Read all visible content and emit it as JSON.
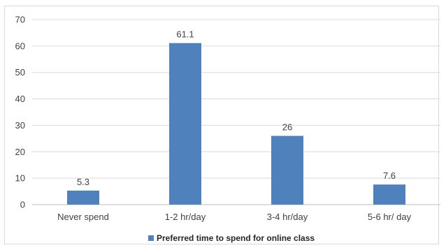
{
  "chart_data": {
    "type": "bar",
    "categories": [
      "Never spend",
      "1-2 hr/day",
      "3-4 hr/day",
      "5-6 hr/ day"
    ],
    "series": [
      {
        "name": "Preferred time to spend for online class",
        "values": [
          5.3,
          61.1,
          26,
          7.6
        ],
        "color": "#4f81bd"
      }
    ],
    "data_labels": [
      "5.3",
      "61.1",
      "26",
      "7.6"
    ],
    "ylim": [
      0,
      70
    ],
    "yticks": [
      0,
      10,
      20,
      30,
      40,
      50,
      60,
      70
    ],
    "grid": true,
    "legend_position": "bottom"
  }
}
